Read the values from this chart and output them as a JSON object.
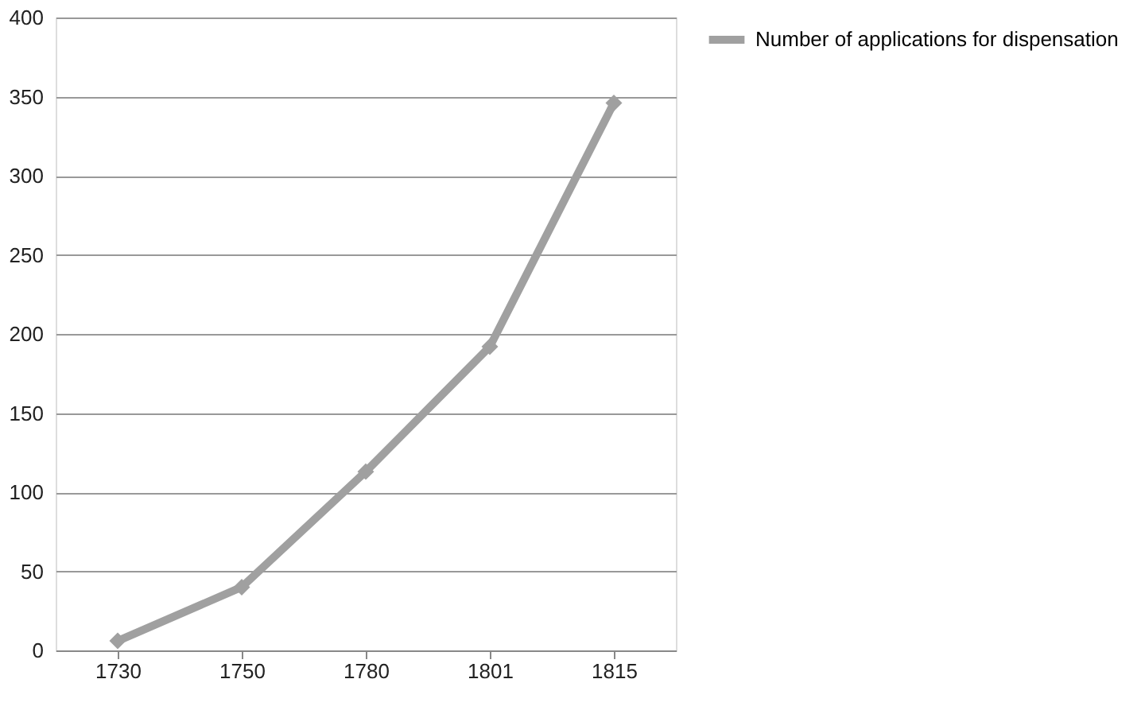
{
  "chart_data": {
    "type": "line",
    "categories": [
      "1730",
      "1750",
      "1780",
      "1801",
      "1815"
    ],
    "series": [
      {
        "name": "Number of applications for dispensation",
        "color": "#a0a0a0",
        "values": [
          6,
          40,
          113,
          192,
          346
        ]
      }
    ],
    "ylim": [
      0,
      400
    ],
    "yticks": [
      0,
      50,
      100,
      150,
      200,
      250,
      300,
      350,
      400
    ],
    "grid": "y",
    "legend": "right",
    "marker": "diamond",
    "line_style": "solid"
  }
}
